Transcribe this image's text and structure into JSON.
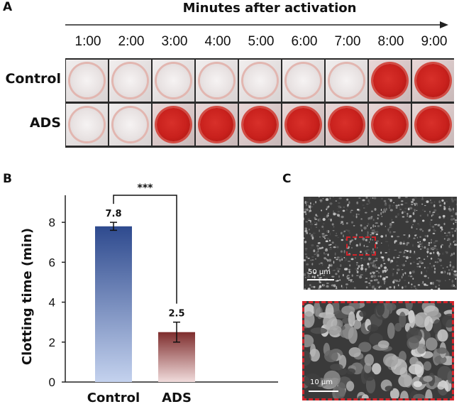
{
  "panels": {
    "a": "A",
    "b": "B",
    "c": "C"
  },
  "panel_a": {
    "title": "Minutes after activation",
    "times": [
      "1:00",
      "2:00",
      "3:00",
      "4:00",
      "5:00",
      "6:00",
      "7:00",
      "8:00",
      "9:00"
    ],
    "rows": [
      {
        "label": "Control",
        "clotted": [
          false,
          false,
          false,
          false,
          false,
          false,
          false,
          true,
          true
        ]
      },
      {
        "label": "ADS",
        "clotted": [
          false,
          false,
          true,
          true,
          true,
          true,
          true,
          true,
          true
        ]
      }
    ]
  },
  "chart_data": {
    "type": "bar",
    "categories": [
      "Control",
      "ADS"
    ],
    "values": [
      7.8,
      2.5
    ],
    "errors": [
      0.2,
      0.5
    ],
    "data_labels": [
      "7.8",
      "2.5"
    ],
    "ylabel": "Clotting time (min)",
    "xlabel": "",
    "ylim": [
      0,
      9
    ],
    "yticks": [
      0,
      2,
      4,
      6,
      8
    ],
    "significance": "***",
    "colors": {
      "control_top": "#2e4a8e",
      "control_bottom": "#c4d2ee",
      "ads_top": "#7e2d2d",
      "ads_bottom": "#f1dcdc"
    }
  },
  "panel_c": {
    "top_scale": "50 μm",
    "bottom_scale": "10 μm",
    "roi_color": "#d2232a"
  }
}
